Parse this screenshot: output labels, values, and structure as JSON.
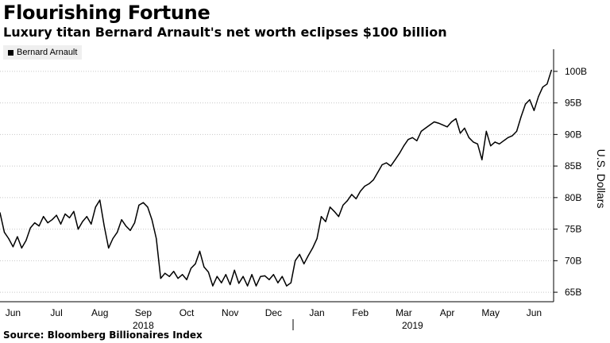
{
  "chart_data": {
    "type": "line",
    "title": "Flourishing Fortune",
    "subtitle": "Luxury titan Bernard Arnault's net worth eclipses $100 billion",
    "ylabel": "U.S. Dollars",
    "ylim": [
      63.5,
      102.5
    ],
    "yticks": [
      65,
      70,
      75,
      80,
      85,
      90,
      95,
      100
    ],
    "ytick_labels": [
      "65B",
      "70B",
      "75B",
      "80B",
      "85B",
      "90B",
      "95B",
      "100B"
    ],
    "grid": true,
    "legend": "top-left",
    "months": [
      {
        "label": "Jun",
        "x": 0.3
      },
      {
        "label": "Jul",
        "x": 1.3
      },
      {
        "label": "Aug",
        "x": 2.3
      },
      {
        "label": "Sep",
        "x": 3.3
      },
      {
        "label": "Oct",
        "x": 4.3
      },
      {
        "label": "Nov",
        "x": 5.3
      },
      {
        "label": "Dec",
        "x": 6.3
      },
      {
        "label": "Jan",
        "x": 7.3
      },
      {
        "label": "Feb",
        "x": 8.3
      },
      {
        "label": "Mar",
        "x": 9.3
      },
      {
        "label": "Apr",
        "x": 10.3
      },
      {
        "label": "May",
        "x": 11.3
      },
      {
        "label": "Jun",
        "x": 12.3
      }
    ],
    "years": [
      {
        "label": "2018",
        "x": 3.3
      },
      {
        "label": "2019",
        "x": 9.5
      }
    ],
    "year_divider_x": 6.75,
    "xlim": [
      0,
      12.75
    ],
    "series": [
      {
        "name": "Bernard Arnault",
        "color": "#000000",
        "x": [
          0,
          0.1,
          0.2,
          0.3,
          0.4,
          0.5,
          0.6,
          0.7,
          0.8,
          0.9,
          1.0,
          1.1,
          1.2,
          1.3,
          1.4,
          1.5,
          1.6,
          1.7,
          1.8,
          1.9,
          2.0,
          2.1,
          2.2,
          2.3,
          2.4,
          2.5,
          2.6,
          2.7,
          2.8,
          2.9,
          3.0,
          3.1,
          3.2,
          3.3,
          3.4,
          3.5,
          3.6,
          3.7,
          3.8,
          3.9,
          4.0,
          4.1,
          4.2,
          4.3,
          4.4,
          4.5,
          4.6,
          4.7,
          4.8,
          4.9,
          5.0,
          5.1,
          5.2,
          5.3,
          5.4,
          5.5,
          5.6,
          5.7,
          5.8,
          5.9,
          6.0,
          6.1,
          6.2,
          6.3,
          6.4,
          6.5,
          6.6,
          6.7,
          6.8,
          6.9,
          7.0,
          7.1,
          7.2,
          7.3,
          7.4,
          7.5,
          7.6,
          7.7,
          7.8,
          7.9,
          8.0,
          8.1,
          8.2,
          8.3,
          8.4,
          8.5,
          8.6,
          8.7,
          8.8,
          8.9,
          9.0,
          9.1,
          9.2,
          9.3,
          9.4,
          9.5,
          9.6,
          9.7,
          9.8,
          9.9,
          10.0,
          10.1,
          10.2,
          10.3,
          10.4,
          10.5,
          10.6,
          10.7,
          10.8,
          10.9,
          11.0,
          11.1,
          11.2,
          11.3,
          11.4,
          11.5,
          11.6,
          11.7,
          11.8,
          11.9,
          12.0,
          12.1,
          12.2,
          12.3,
          12.4,
          12.5,
          12.6,
          12.7
        ],
        "values": [
          77.6,
          74.5,
          73.5,
          72.2,
          73.8,
          72.0,
          73.2,
          75.2,
          76.0,
          75.5,
          77.0,
          76.0,
          76.5,
          77.2,
          75.8,
          77.4,
          76.8,
          77.8,
          75.0,
          76.2,
          77.0,
          75.8,
          78.5,
          79.6,
          75.5,
          72.0,
          73.5,
          74.5,
          76.5,
          75.5,
          74.8,
          76.0,
          78.8,
          79.2,
          78.5,
          76.5,
          73.5,
          67.2,
          68.0,
          67.5,
          68.3,
          67.2,
          67.8,
          67.0,
          68.8,
          69.5,
          71.5,
          69.0,
          68.2,
          66.0,
          67.5,
          66.5,
          67.8,
          66.2,
          68.5,
          66.4,
          67.5,
          66.0,
          67.8,
          66.0,
          67.5,
          67.6,
          67.0,
          67.8,
          66.5,
          67.5,
          66.0,
          66.5,
          70.0,
          71.0,
          69.5,
          70.8,
          72.0,
          73.5,
          77.0,
          76.2,
          78.5,
          77.8,
          77.0,
          78.8,
          79.5,
          80.5,
          79.8,
          81.0,
          81.8,
          82.2,
          82.8,
          84.0,
          85.2,
          85.5,
          85.0,
          86.0,
          87.0,
          88.2,
          89.2,
          89.5,
          89.0,
          90.5,
          91.0,
          91.5,
          92.0,
          91.8,
          91.5,
          91.2,
          92.0,
          92.5,
          90.2,
          91.0,
          89.5,
          88.8,
          88.5,
          86.0,
          90.5,
          88.2,
          88.8,
          88.5,
          89.0,
          89.5,
          89.8,
          90.5,
          92.8,
          94.8,
          95.5,
          93.8,
          96.0,
          97.5,
          98.0,
          100.2
        ]
      }
    ]
  }
}
